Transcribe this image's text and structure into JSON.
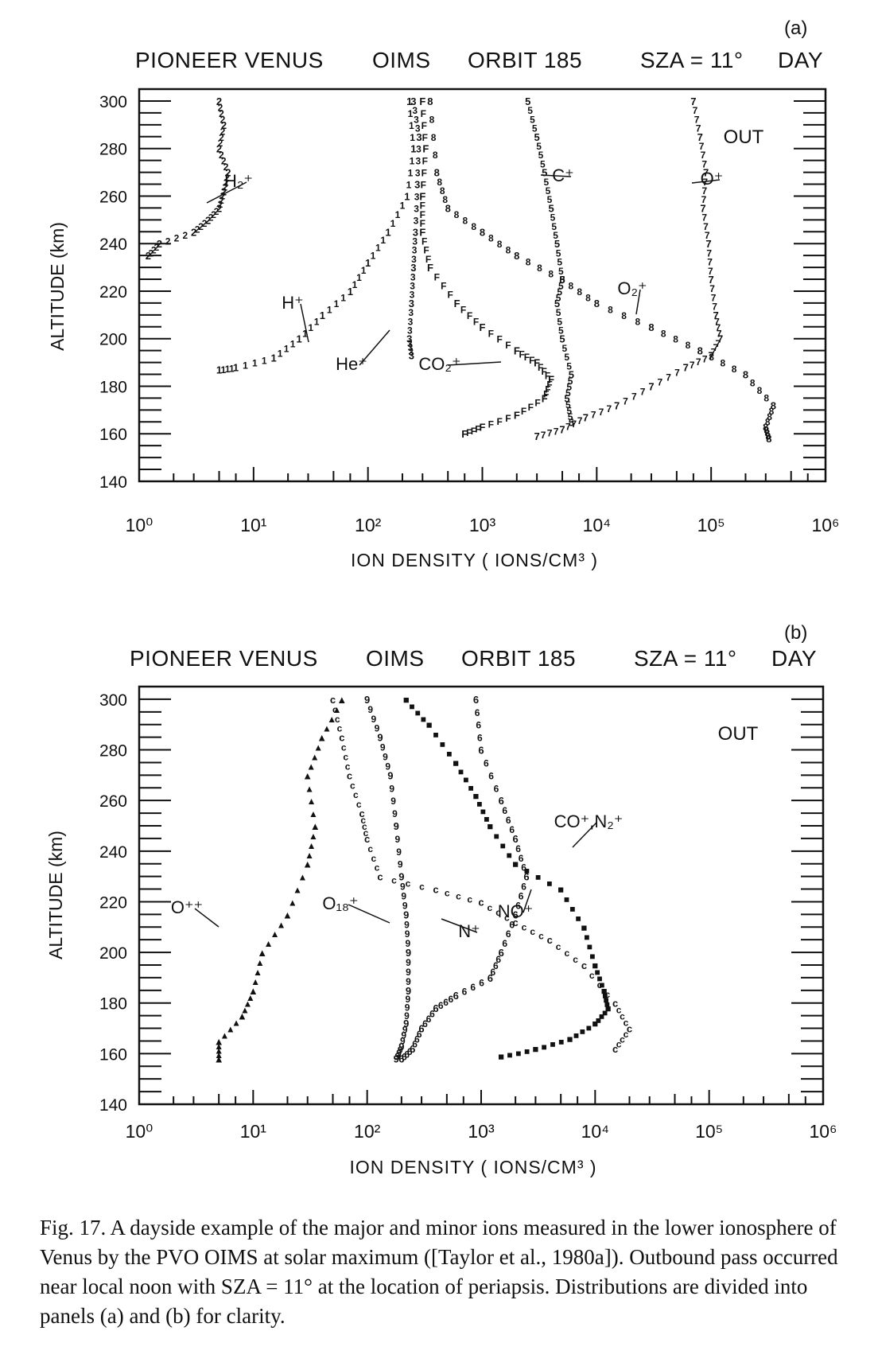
{
  "caption": "Fig. 17.  A dayside example of the major and minor ions measured in the lower ionosphere of Venus by the PVO OIMS at solar maximum ([Taylor et al., 1980a]).  Outbound pass occurred near local noon with SZA = 11° at the location of periapsis.  Distributions are divided into panels (a) and (b) for clarity.",
  "chart_data": [
    {
      "panel": "(a)",
      "type": "scatter",
      "header": {
        "mission": "PIONEER VENUS",
        "instrument": "OIMS",
        "orbit": "ORBIT 185",
        "sza": "SZA = 11°",
        "day": "DAY"
      },
      "pass_label": "OUT",
      "xlabel": "ION DENSITY  ( IONS/CM³ )",
      "ylabel": "ALTITUDE (km)",
      "xscale": "log",
      "xlim": [
        1,
        1000000
      ],
      "ylim": [
        140,
        305
      ],
      "x_tick_labels": [
        "10⁰",
        "10¹",
        "10²",
        "10³",
        "10⁴",
        "10⁵",
        "10⁶"
      ],
      "y_tick_labels": [
        "140",
        "160",
        "180",
        "200",
        "220",
        "240",
        "260",
        "280",
        "300"
      ],
      "series": [
        {
          "name": "H₂⁺",
          "marker": "2",
          "points": [
            [
              5,
              300
            ],
            [
              5.5,
              290
            ],
            [
              5,
              280
            ],
            [
              6,
              270
            ],
            [
              5.5,
              262
            ],
            [
              5,
              255
            ],
            [
              4,
              250
            ],
            [
              3,
              245
            ],
            [
              1.5,
              240
            ],
            [
              1.2,
              235
            ]
          ]
        },
        {
          "name": "H⁺",
          "marker": "1",
          "points": [
            [
              230,
              300
            ],
            [
              250,
              280
            ],
            [
              220,
              260
            ],
            [
              150,
              245
            ],
            [
              100,
              232
            ],
            [
              70,
              220
            ],
            [
              40,
              210
            ],
            [
              25,
              200
            ],
            [
              15,
              192
            ],
            [
              7,
              188
            ],
            [
              5,
              187
            ]
          ]
        },
        {
          "name": "He⁺",
          "marker": "3",
          "points": [
            [
              250,
              300
            ],
            [
              280,
              285
            ],
            [
              270,
              265
            ],
            [
              260,
              245
            ],
            [
              250,
              230
            ],
            [
              240,
              215
            ],
            [
              230,
              200
            ],
            [
              240,
              193
            ]
          ]
        },
        {
          "name": "CO₂⁺",
          "marker": "F",
          "points": [
            [
              300,
              300
            ],
            [
              320,
              280
            ],
            [
              300,
              260
            ],
            [
              300,
              245
            ],
            [
              350,
              230
            ],
            [
              600,
              215
            ],
            [
              1000,
              205
            ],
            [
              2000,
              195
            ],
            [
              3000,
              190
            ],
            [
              4000,
              183
            ],
            [
              3500,
              175
            ],
            [
              2000,
              168
            ],
            [
              1000,
              163
            ],
            [
              700,
              160
            ]
          ]
        },
        {
          "name": "C⁺",
          "marker": "5",
          "points": [
            [
              2500,
              300
            ],
            [
              3000,
              285
            ],
            [
              3500,
              270
            ],
            [
              4000,
              255
            ],
            [
              4500,
              240
            ],
            [
              5000,
              225
            ],
            [
              4500,
              215
            ],
            [
              5000,
              200
            ],
            [
              6000,
              185
            ],
            [
              5500,
              175
            ],
            [
              6000,
              165
            ]
          ]
        },
        {
          "name": "O₂⁺",
          "marker": "8",
          "points": [
            [
              350,
              300
            ],
            [
              400,
              270
            ],
            [
              500,
              255
            ],
            [
              1000,
              245
            ],
            [
              2000,
              235
            ],
            [
              5000,
              225
            ],
            [
              10000,
              215
            ],
            [
              30000,
              205
            ],
            [
              80000,
              195
            ],
            [
              200000,
              185
            ],
            [
              350000,
              172
            ],
            [
              300000,
              163
            ],
            [
              320000,
              158
            ]
          ]
        },
        {
          "name": "O⁺",
          "marker": "7",
          "points": [
            [
              70000,
              300
            ],
            [
              80000,
              285
            ],
            [
              90000,
              270
            ],
            [
              85000,
              255
            ],
            [
              95000,
              240
            ],
            [
              100000,
              225
            ],
            [
              110000,
              210
            ],
            [
              120000,
              200
            ],
            [
              100000,
              193
            ],
            [
              60000,
              188
            ],
            [
              30000,
              180
            ],
            [
              15000,
              172
            ],
            [
              8000,
              167
            ],
            [
              5000,
              162
            ],
            [
              3000,
              159
            ]
          ]
        }
      ],
      "annotations": [
        "H₂⁺",
        "H⁺",
        "He⁺",
        "CO₂⁺",
        "C⁺",
        "O₂⁺",
        "O⁺"
      ]
    },
    {
      "panel": "(b)",
      "type": "scatter",
      "header": {
        "mission": "PIONEER VENUS",
        "instrument": "OIMS",
        "orbit": "ORBIT 185",
        "sza": "SZA = 11°",
        "day": "DAY"
      },
      "pass_label": "OUT",
      "xlabel": "ION DENSITY  ( IONS/CM³ )",
      "ylabel": "ALTITUDE (km)",
      "xscale": "log",
      "xlim": [
        1,
        1000000
      ],
      "ylim": [
        140,
        305
      ],
      "x_tick_labels": [
        "10⁰",
        "10¹",
        "10²",
        "10³",
        "10⁴",
        "10⁵",
        "10⁶"
      ],
      "y_tick_labels": [
        "140",
        "160",
        "180",
        "200",
        "220",
        "240",
        "260",
        "280",
        "300"
      ],
      "series": [
        {
          "name": "O⁺⁺",
          "marker": "▲",
          "points": [
            [
              60,
              300
            ],
            [
              40,
              285
            ],
            [
              30,
              270
            ],
            [
              35,
              250
            ],
            [
              30,
              235
            ],
            [
              20,
              215
            ],
            [
              12,
              200
            ],
            [
              10,
              185
            ],
            [
              8,
              175
            ],
            [
              5,
              165
            ],
            [
              5,
              158
            ]
          ]
        },
        {
          "name": "O₁₈⁺",
          "marker": "9",
          "points": [
            [
              100,
              300
            ],
            [
              130,
              285
            ],
            [
              160,
              270
            ],
            [
              180,
              250
            ],
            [
              200,
              230
            ],
            [
              220,
              215
            ],
            [
              230,
              200
            ],
            [
              230,
              185
            ],
            [
              220,
              172
            ],
            [
              200,
              163
            ],
            [
              180,
              158
            ]
          ]
        },
        {
          "name": "N⁺",
          "marker": "6",
          "points": [
            [
              900,
              300
            ],
            [
              1000,
              280
            ],
            [
              1500,
              260
            ],
            [
              2000,
              245
            ],
            [
              2500,
              230
            ],
            [
              2000,
              215
            ],
            [
              1500,
              200
            ],
            [
              1200,
              190
            ],
            [
              600,
              183
            ],
            [
              400,
              178
            ],
            [
              300,
              170
            ],
            [
              250,
              162
            ],
            [
              200,
              158
            ]
          ]
        },
        {
          "name": "NO⁺",
          "marker": "■",
          "points": [
            [
              220,
              300
            ],
            [
              350,
              290
            ],
            [
              600,
              275
            ],
            [
              900,
              262
            ],
            [
              1200,
              250
            ],
            [
              2000,
              235
            ],
            [
              5000,
              225
            ],
            [
              8000,
              210
            ],
            [
              10000,
              195
            ],
            [
              12000,
              185
            ],
            [
              13000,
              178
            ],
            [
              10000,
              172
            ],
            [
              6000,
              166
            ],
            [
              3000,
              162
            ],
            [
              1500,
              159
            ]
          ]
        },
        {
          "name": "CO⁺, N₂⁺",
          "marker": "c",
          "points": [
            [
              50,
              300
            ],
            [
              60,
              285
            ],
            [
              70,
              270
            ],
            [
              90,
              255
            ],
            [
              100,
              245
            ],
            [
              130,
              230
            ],
            [
              400,
              225
            ],
            [
              1000,
              220
            ],
            [
              2000,
              212
            ],
            [
              4000,
              205
            ],
            [
              8000,
              195
            ],
            [
              15000,
              180
            ],
            [
              20000,
              170
            ],
            [
              15000,
              162
            ]
          ]
        }
      ],
      "annotations": [
        "O⁺⁺",
        "O₁₈⁺",
        "N⁺",
        "NO⁺",
        "CO⁺,N₂⁺"
      ]
    }
  ]
}
